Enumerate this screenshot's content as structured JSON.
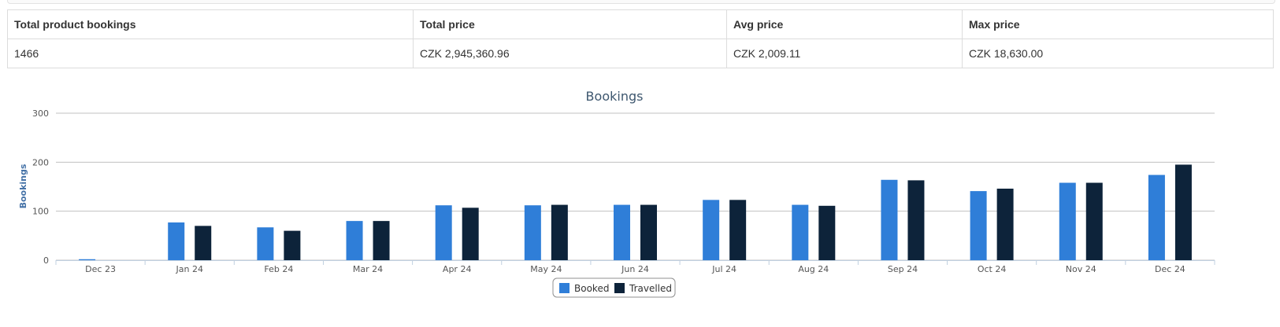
{
  "summary": {
    "headers": [
      "Total product bookings",
      "Total price",
      "Avg price",
      "Max price"
    ],
    "values": [
      "1466",
      "CZK 2,945,360.96",
      "CZK 2,009.11",
      "CZK 18,630.00"
    ]
  },
  "chart_data": {
    "type": "bar",
    "title": "Bookings",
    "xlabel": "",
    "ylabel": "Bookings",
    "ylim": [
      0,
      300
    ],
    "yticks": [
      0,
      100,
      200,
      300
    ],
    "grid": true,
    "legend_position": "bottom-center",
    "categories": [
      "Dec 23",
      "Jan 24",
      "Feb 24",
      "Mar 24",
      "Apr 24",
      "May 24",
      "Jun 24",
      "Jul 24",
      "Aug 24",
      "Sep 24",
      "Oct 24",
      "Nov 24",
      "Dec 24"
    ],
    "series": [
      {
        "name": "Booked",
        "color": "#2f7ed8",
        "values": [
          2,
          77,
          67,
          80,
          112,
          112,
          113,
          123,
          113,
          164,
          141,
          158,
          174
        ]
      },
      {
        "name": "Travelled",
        "color": "#0d233a",
        "values": [
          0,
          70,
          60,
          80,
          107,
          113,
          113,
          123,
          111,
          163,
          146,
          158,
          195
        ]
      }
    ]
  }
}
